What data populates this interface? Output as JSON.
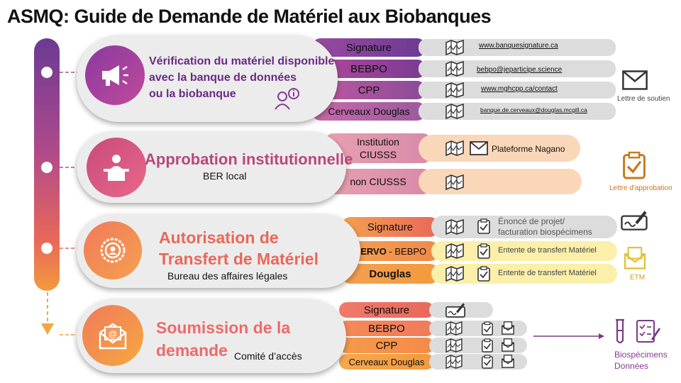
{
  "title": "ASMQ: Guide de Demande de Matériel aux Biobanques",
  "stages": [
    {
      "title_lines": [
        "Vérification du matériel disponible",
        "avec la banque de données",
        "ou la biobanque"
      ],
      "rows": [
        {
          "label": "Signature",
          "link": "www.banquesignature.ca"
        },
        {
          "label": "BEBPO",
          "link": "bebpo@jeparticipe.science"
        },
        {
          "label": "CPP",
          "link": "www.mghcpp.ca/contact"
        },
        {
          "label": "Cerveaux  Douglas",
          "link": "banque.de.cerveaux@douglas.mcgill.ca"
        }
      ],
      "side_caption": "Lettre de soutien"
    },
    {
      "title": "Approbation institutionnelle",
      "subtitle": "BER local",
      "rows": [
        {
          "label_lines": [
            "Institution",
            "CIUSSS"
          ],
          "note": "Plateforme  Nagano"
        },
        {
          "label": "non CIUSSS"
        }
      ],
      "side_caption": "Lettre d'approbation"
    },
    {
      "title_lines": [
        "Autorisation de",
        "Transfert de Matériel"
      ],
      "subtitle": "Bureau des affaires légales",
      "rows": [
        {
          "label": "Signature",
          "note_lines": [
            "Énoncé de projet/",
            "facturation  biospécimens"
          ]
        },
        {
          "label_bold": "CERVO",
          "label_rest": " - BEBPO",
          "note": "Entente de transfert Matériel"
        },
        {
          "label": "Douglas",
          "note": "Entente de transfert Matériel"
        }
      ],
      "side_caption": "ETM"
    },
    {
      "title_lines": [
        "Soumission de la",
        "demande"
      ],
      "subtitle": "Comité d’accès",
      "rows": [
        {
          "label": "Signature"
        },
        {
          "label": "BEBPO"
        },
        {
          "label": "CPP"
        },
        {
          "label": "Cerveaux  Douglas"
        }
      ],
      "outputs": [
        "Biospécimens",
        "Données"
      ]
    }
  ]
}
